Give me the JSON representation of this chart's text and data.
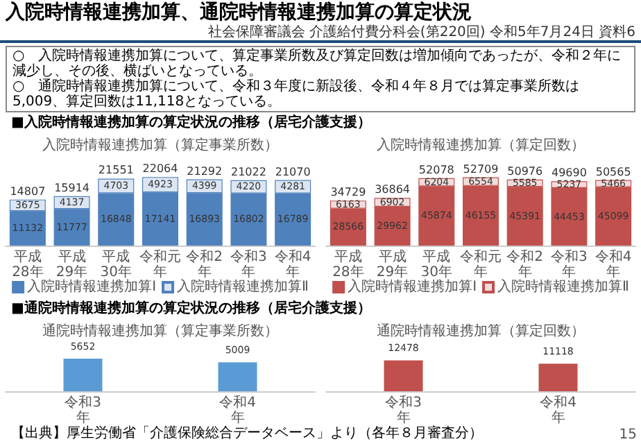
{
  "chart_data": [
    {
      "type": "other",
      "title": "入院時情報連携加算、通院時情報連携加算の算定状況",
      "annotations": [
        "社会保障審議会 介護給付費分科会(第220回) 令和5年7月24日 資料6",
        "○　入院時情報連携加算について、算定事業所数及び算定回数は増加傾向であったが、令和２年に減少し、その後、横ばいとなっている。",
        "○　通院時情報連携加算について、令和３年度に新設後、令和４年８月では算定事業所数は5,009、算定回数は11,118となっている。",
        "15"
      ]
    },
    {
      "type": "bar",
      "stacked": true,
      "title": "入院時情報連携加算（算定事業所数）",
      "categories": [
        "平成28年",
        "平成29年",
        "平成30年",
        "令和元年",
        "令和2年",
        "令和3年",
        "令和4年"
      ],
      "series": [
        {
          "name": "入院時情報連携加算Ⅰ",
          "color": "#4f81bd",
          "values": [
            11132,
            11777,
            16848,
            17141,
            16893,
            16802,
            16789
          ]
        },
        {
          "name": "入院時情報連携加算Ⅱ",
          "color": "#dce6f2",
          "values": [
            3675,
            4137,
            4703,
            4923,
            4399,
            4220,
            4281
          ]
        }
      ],
      "data_labels": true,
      "totals": [
        "14807",
        "15914",
        "21551",
        "22064",
        "21292",
        "21022",
        "21070"
      ],
      "legend": "bottom",
      "annotations": [
        "■入院時情報連携加算の算定状況の推移（居宅介護支援）"
      ]
    },
    {
      "type": "bar",
      "stacked": true,
      "title": "入院時情報連携加算（算定回数）",
      "categories": [
        "平成28年",
        "平成29年",
        "平成30年",
        "令和元年",
        "令和2年",
        "令和3年",
        "令和4年"
      ],
      "series": [
        {
          "name": "入院時情報連携加算Ⅰ",
          "color": "#c0504d",
          "values": [
            28566,
            29962,
            45874,
            46155,
            45391,
            44453,
            45099
          ]
        },
        {
          "name": "入院時情報連携加算Ⅱ",
          "color": "#f2dcdb",
          "values": [
            6163,
            6902,
            6204,
            6554,
            5585,
            5237,
            5466
          ]
        }
      ],
      "data_labels": true,
      "totals": [
        "34729",
        "36864",
        "52078",
        "52709",
        "50976",
        "49690",
        "50565"
      ],
      "legend": "bottom"
    },
    {
      "type": "bar",
      "title": "通院時情報連携加算（算定事業所数）",
      "categories": [
        "令和3年",
        "令和4年"
      ],
      "values": [
        5652,
        5009
      ],
      "color": "#5b9bd5",
      "data_labels": true,
      "annotations": [
        "■通院時情報連携加算の算定状況の推移（居宅介護支援）",
        "【出典】厚生労働省「介護保険総合データベース」より（各年８月審査分）"
      ]
    },
    {
      "type": "bar",
      "title": "通院時情報連携加算（算定回数）",
      "categories": [
        "令和3年",
        "令和4年"
      ],
      "values": [
        12478,
        11118
      ],
      "color": "#c0504d",
      "data_labels": true
    }
  ]
}
